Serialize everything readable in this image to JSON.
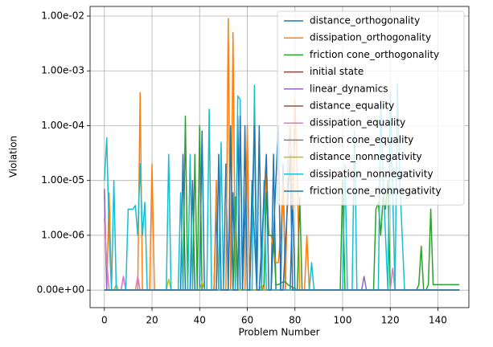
{
  "chart_data": {
    "type": "line",
    "x_label": "Problem Number",
    "y_label": "Violation",
    "yscale": "symlog",
    "linthresh": 1e-06,
    "xlim": [
      -6,
      153
    ],
    "ylim": [
      -3.2e-07,
      0.015
    ],
    "xticks": [
      0,
      20,
      40,
      60,
      80,
      100,
      120,
      140
    ],
    "yticks": [
      {
        "value": 0,
        "label": "0.00e+00"
      },
      {
        "value": 1e-06,
        "label": "1.00e-06"
      },
      {
        "value": 1e-05,
        "label": "1.00e-05"
      },
      {
        "value": 0.0001,
        "label": "1.00e-04"
      },
      {
        "value": 0.001,
        "label": "1.00e-03"
      },
      {
        "value": 0.01,
        "label": "1.00e-02"
      }
    ],
    "grid": true,
    "legend": "upper right",
    "series": [
      {
        "name": "distance_orthogonality",
        "color": "#1f77b4",
        "x": [
          0,
          32,
          33,
          34,
          36,
          37,
          38,
          40,
          41,
          42,
          46,
          47,
          48,
          50,
          51,
          52,
          53,
          54,
          55,
          56,
          57,
          58,
          60,
          61,
          62,
          64,
          65,
          66,
          70,
          71,
          72,
          74,
          75,
          76,
          78,
          79,
          80,
          82,
          149
        ],
        "values": [
          0,
          0,
          3e-05,
          0,
          0,
          1e-05,
          0,
          0,
          8e-05,
          0,
          0,
          3e-06,
          0,
          0,
          2e-05,
          0,
          0,
          6e-06,
          0,
          0.00015,
          0,
          0,
          5e-05,
          0,
          1e-05,
          0,
          0.0001,
          0,
          0,
          3e-05,
          0,
          0,
          2e-05,
          0,
          0,
          5e-06,
          0,
          0,
          0
        ]
      },
      {
        "name": "dissipation_orthogonality",
        "color": "#ff7f0e",
        "x": [
          0,
          1,
          2,
          3,
          14,
          15,
          16,
          19,
          20,
          21,
          46,
          47,
          48,
          51,
          52,
          53,
          54,
          55,
          59,
          60,
          61,
          67,
          68,
          69,
          70,
          72,
          73,
          74,
          75,
          76,
          77,
          78,
          79,
          80,
          81,
          82,
          84,
          85,
          86,
          149
        ],
        "values": [
          7e-06,
          0,
          6e-06,
          0,
          0,
          0.0004,
          0,
          0,
          2e-05,
          0,
          0,
          1e-05,
          0,
          0,
          0.009,
          0,
          0.005,
          0,
          0,
          0.0001,
          0,
          0,
          2.5e-05,
          1e-06,
          1e-06,
          5e-07,
          5e-07,
          1e-06,
          1e-05,
          0,
          2e-05,
          0.0001,
          3e-06,
          0.0003,
          1e-05,
          0,
          0,
          1e-06,
          0,
          0
        ]
      },
      {
        "name": "friction cone_orthogonality",
        "color": "#2ca02c",
        "x": [
          0,
          33,
          34,
          35,
          37,
          38,
          39,
          40,
          41,
          42,
          54,
          55,
          56,
          66,
          67,
          68,
          69,
          70,
          71,
          72,
          73,
          75,
          76,
          77,
          81,
          82,
          83,
          99,
          100,
          101,
          113,
          114,
          115,
          116,
          117,
          118,
          119,
          120,
          121,
          131,
          132,
          133,
          134,
          135,
          136,
          137,
          138,
          149
        ],
        "values": [
          0,
          0,
          0.00015,
          0,
          0,
          3e-05,
          0,
          0.0001,
          0,
          0,
          0,
          5e-06,
          0,
          0,
          1e-07,
          6e-06,
          1e-06,
          1e-06,
          1e-06,
          1e-07,
          1e-07,
          1.5e-07,
          1.5e-07,
          1e-07,
          0,
          5e-06,
          0,
          0,
          1e-05,
          0,
          0,
          3e-06,
          4e-06,
          1e-06,
          5e-06,
          3e-06,
          1e-05,
          0,
          0,
          0,
          1e-07,
          8e-07,
          0,
          0,
          1e-07,
          3e-06,
          1e-07,
          1e-07
        ]
      },
      {
        "name": "initial state",
        "color": "#d62728",
        "x": [
          0,
          149
        ],
        "values": [
          0,
          0
        ]
      },
      {
        "name": "linear_dynamics",
        "color": "#9467bd",
        "x": [
          0,
          1,
          7,
          8,
          9,
          108,
          109,
          110,
          149
        ],
        "values": [
          7e-06,
          0,
          0,
          2.5e-07,
          0,
          0,
          2.5e-07,
          0,
          0
        ]
      },
      {
        "name": "distance_equality",
        "color": "#8c564b",
        "x": [
          0,
          149
        ],
        "values": [
          0,
          0
        ]
      },
      {
        "name": "dissipation_equality",
        "color": "#e377c2",
        "x": [
          0,
          1,
          2,
          7,
          8,
          9,
          13,
          14,
          15,
          120,
          121,
          122,
          149
        ],
        "values": [
          2e-06,
          5e-07,
          0,
          0,
          2.5e-07,
          0,
          0,
          2.5e-07,
          0,
          0,
          4e-07,
          0,
          0
        ]
      },
      {
        "name": "friction cone_equality",
        "color": "#7f7f7f",
        "x": [
          0,
          149
        ],
        "values": [
          0,
          0
        ]
      },
      {
        "name": "distance_nonnegativity",
        "color": "#bcbd22",
        "x": [
          0,
          4,
          5,
          6,
          26,
          27,
          28,
          40,
          41,
          42,
          65,
          66,
          67,
          149
        ],
        "values": [
          0,
          0,
          1e-07,
          0,
          0,
          2e-07,
          0,
          0,
          1.5e-07,
          0,
          0,
          1e-07,
          0,
          0
        ]
      },
      {
        "name": "dissipation_nonnegativity",
        "color": "#17becf",
        "x": [
          0,
          1,
          2,
          3,
          4,
          5,
          9,
          10,
          12,
          13,
          14,
          15,
          16,
          17,
          18,
          26,
          27,
          28,
          31,
          32,
          33,
          35,
          36,
          37,
          43,
          44,
          45,
          48,
          49,
          50,
          55,
          56,
          57,
          58,
          62,
          63,
          64,
          66,
          67,
          68,
          86,
          87,
          88,
          100,
          101,
          102,
          104,
          105,
          106,
          115,
          116,
          117,
          119,
          120,
          122,
          123,
          124,
          126,
          149
        ],
        "values": [
          1e-05,
          6e-05,
          1e-06,
          0,
          1e-05,
          0,
          0,
          3e-06,
          3e-06,
          3.5e-06,
          1e-06,
          2e-05,
          1e-06,
          4e-06,
          0,
          0,
          3e-05,
          0,
          0,
          6e-06,
          0,
          0,
          3e-05,
          0,
          0,
          0.0002,
          0,
          0,
          5e-05,
          0,
          0,
          0.00035,
          0.0003,
          0,
          0,
          0.00055,
          0,
          0,
          1e-05,
          0,
          0,
          5e-07,
          0,
          0,
          2e-05,
          0,
          0,
          8e-05,
          0,
          0,
          0.0003,
          1e-05,
          0,
          0.0004,
          0,
          0.0006,
          1e-05,
          0,
          0
        ]
      },
      {
        "name": "friction cone_nonnegativity",
        "color": "#1f77b4",
        "x": [
          0,
          47,
          48,
          49,
          52,
          53,
          54,
          56,
          57,
          58,
          59,
          60,
          61,
          63,
          64,
          65,
          68,
          69,
          70,
          73,
          74,
          75,
          78,
          79,
          80,
          149
        ],
        "values": [
          0,
          0,
          3e-05,
          0,
          0,
          0.0001,
          0,
          0,
          0.00015,
          0,
          0.0001,
          0,
          0,
          0.0001,
          0,
          0,
          3e-05,
          0,
          0,
          0.0001,
          0,
          0,
          3e-05,
          0,
          0,
          0
        ]
      }
    ]
  }
}
